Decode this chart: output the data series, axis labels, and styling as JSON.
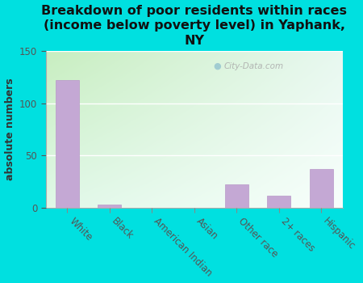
{
  "categories": [
    "White",
    "Black",
    "American Indian",
    "Asian",
    "Other race",
    "2+ races",
    "Hispanic"
  ],
  "values": [
    122,
    3,
    0,
    0,
    22,
    11,
    37
  ],
  "bar_color": "#c4a8d4",
  "bar_edge_color": "#b898c8",
  "title": "Breakdown of poor residents within races\n(income below poverty level) in Yaphank,\nNY",
  "ylabel": "absolute numbers",
  "ylim": [
    0,
    150
  ],
  "yticks": [
    0,
    50,
    100,
    150
  ],
  "background_color": "#00e0e0",
  "plot_bg_topleft": "#c8eec0",
  "plot_bg_bottomright": "#f0f8f8",
  "grid_color": "#ffffff",
  "title_fontsize": 11.5,
  "ylabel_fontsize": 9,
  "tick_fontsize": 8.5,
  "watermark": "City-Data.com",
  "tick_color": "#555555"
}
